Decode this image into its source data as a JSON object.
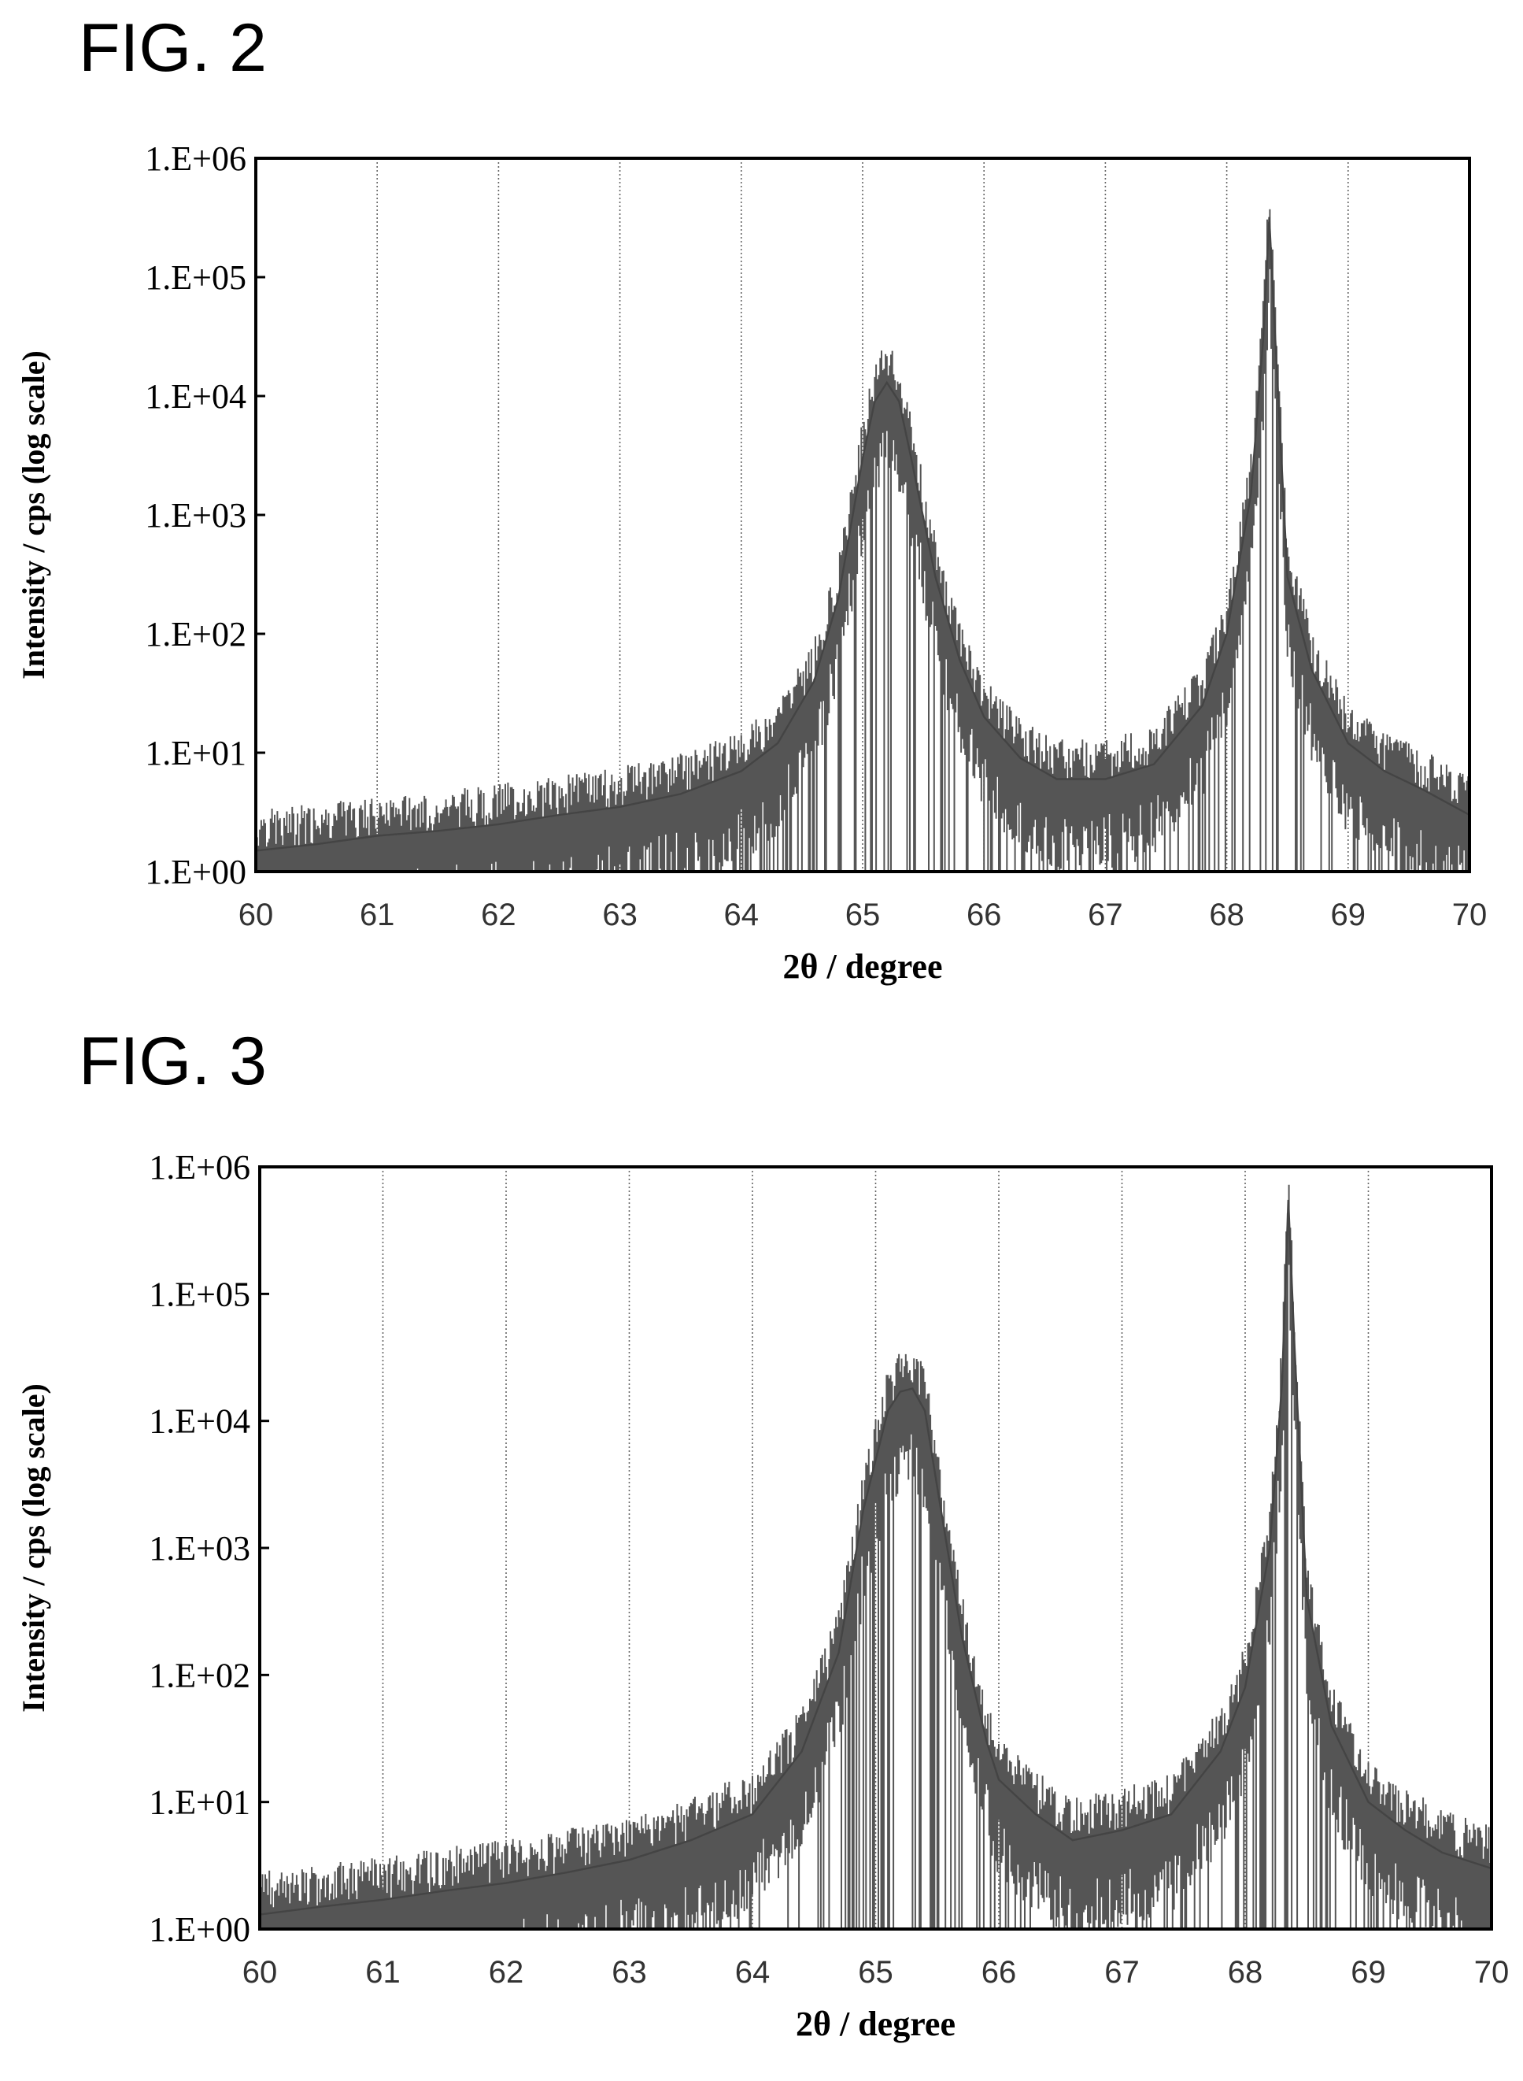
{
  "figures": [
    {
      "label": "FIG. 2"
    },
    {
      "label": "FIG. 3"
    }
  ],
  "chart_data": [
    {
      "type": "line",
      "xlabel": "2θ / degree",
      "ylabel": "Intensity / cps (log scale)",
      "xlim": [
        60,
        70
      ],
      "ylim": [
        1,
        1000000
      ],
      "yscale": "log",
      "x_ticks": [
        "60",
        "61",
        "62",
        "63",
        "64",
        "65",
        "66",
        "67",
        "68",
        "69",
        "70"
      ],
      "y_ticks": [
        "1.E+00",
        "1.E+01",
        "1.E+02",
        "1.E+03",
        "1.E+04",
        "1.E+05",
        "1.E+06"
      ],
      "grid": "vertical dotted lines at each x tick",
      "series": [
        {
          "x": [
            60.0,
            60.5,
            61.0,
            61.5,
            62.0,
            62.5,
            63.0,
            63.5,
            64.0,
            64.3,
            64.6,
            64.8,
            65.0,
            65.1,
            65.2,
            65.3,
            65.4,
            65.6,
            65.8,
            66.0,
            66.3,
            66.6,
            67.0,
            67.4,
            67.8,
            68.0,
            68.2,
            68.3,
            68.35,
            68.4,
            68.5,
            68.7,
            69.0,
            69.3,
            69.6,
            70.0
          ],
          "y": [
            1.5,
            1.7,
            2,
            2.2,
            2.5,
            3,
            3.5,
            4.5,
            7,
            12,
            40,
            200,
            3000,
            9000,
            13000,
            9000,
            3000,
            300,
            60,
            20,
            9,
            6,
            6,
            8,
            25,
            100,
            1500,
            30000,
            320000,
            30000,
            300,
            50,
            12,
            7,
            5,
            3
          ]
        }
      ]
    },
    {
      "type": "line",
      "xlabel": "2θ / degree",
      "ylabel": "Intensity / cps (log scale)",
      "xlim": [
        60,
        70
      ],
      "ylim": [
        1,
        1000000
      ],
      "yscale": "log",
      "x_ticks": [
        "60",
        "61",
        "62",
        "63",
        "64",
        "65",
        "66",
        "67",
        "68",
        "69",
        "70"
      ],
      "y_ticks": [
        "1.E+00",
        "1.E+01",
        "1.E+02",
        "1.E+03",
        "1.E+04",
        "1.E+05",
        "1.E+06"
      ],
      "grid": "vertical dotted lines at each x tick",
      "series": [
        {
          "x": [
            60.0,
            60.5,
            61.0,
            61.5,
            62.0,
            62.5,
            63.0,
            63.5,
            64.0,
            64.4,
            64.7,
            64.9,
            65.1,
            65.2,
            65.3,
            65.4,
            65.5,
            65.7,
            65.9,
            66.0,
            66.3,
            66.6,
            67.0,
            67.4,
            67.8,
            68.0,
            68.2,
            68.3,
            68.35,
            68.4,
            68.5,
            68.7,
            69.0,
            69.3,
            69.6,
            70.0
          ],
          "y": [
            1.3,
            1.5,
            1.7,
            2,
            2.3,
            2.8,
            3.5,
            5,
            8,
            25,
            150,
            2000,
            12000,
            17000,
            18000,
            12000,
            3000,
            200,
            30,
            15,
            8,
            5,
            6,
            8,
            25,
            80,
            1000,
            20000,
            550000,
            40000,
            400,
            40,
            10,
            6,
            4,
            3
          ]
        }
      ]
    }
  ]
}
